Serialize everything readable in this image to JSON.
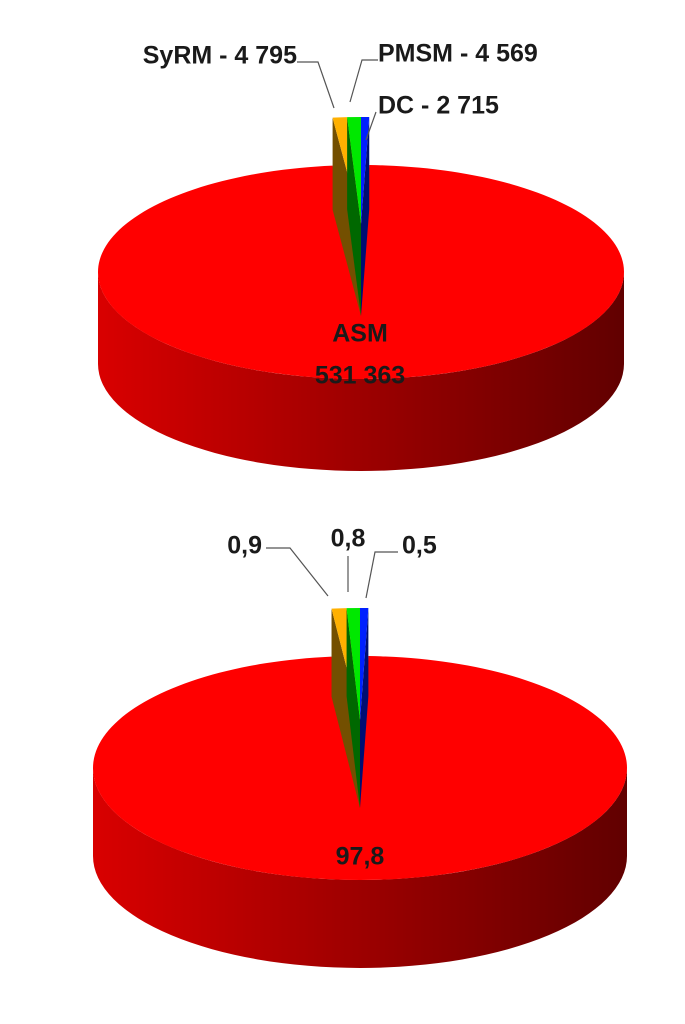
{
  "chart_data": [
    {
      "type": "pie",
      "categories": [
        "ASM",
        "SyRM - 4 795",
        "PMSM - 4 569",
        "DC - 2 715"
      ],
      "values": [
        531363,
        4795,
        4569,
        2715
      ],
      "value_labels": [
        "531 363",
        null,
        null,
        null
      ],
      "colors": [
        "#ff0000",
        "#ffb000",
        "#00e800",
        "#0020ff"
      ]
    },
    {
      "type": "pie",
      "values": [
        97.8,
        0.9,
        0.8,
        0.5
      ],
      "value_labels": [
        "97,8",
        "0,9",
        "0,8",
        "0,5"
      ],
      "colors": [
        "#ff0000",
        "#ffb000",
        "#00e800",
        "#0020ff"
      ]
    }
  ]
}
